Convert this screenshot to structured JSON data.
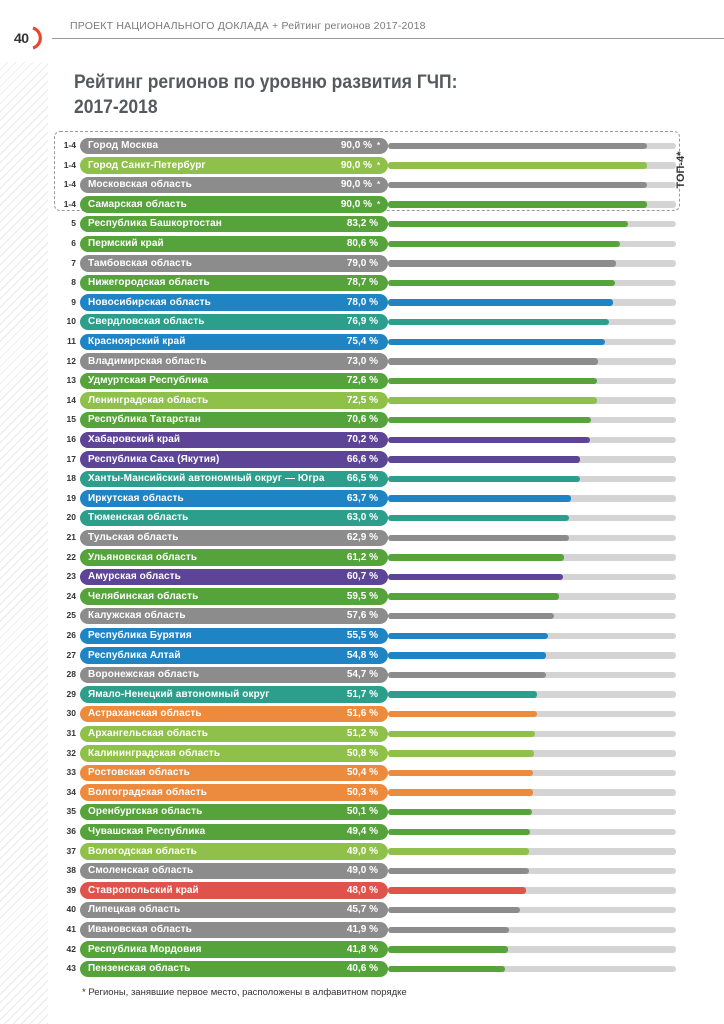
{
  "header": {
    "page_number": "40",
    "text": "ПРОЕКТ НАЦИОНАЛЬНОГО ДОКЛАДА + Рейтинг регионов 2017-2018",
    "accent_color": "#e8472b"
  },
  "top4": {
    "label": "ТОП-4*"
  },
  "footnote": "* Регионы, занявшие первое место, расположены в алфавитном порядке",
  "colors": {
    "gray": "#8c8c8c",
    "lightgreen": "#8fc04a",
    "green": "#55a33a",
    "teal": "#2c9e8c",
    "blue": "#1f84c4",
    "purple": "#5d4497",
    "orange": "#ec8a3d",
    "red": "#e0534a",
    "track": "#d4d4d4"
  },
  "chart_data": {
    "type": "bar",
    "orientation": "horizontal",
    "title": "Рейтинг регионов по уровню развития ГЧП:",
    "title_line2": "2017-2018",
    "value_unit": "%",
    "xlim": [
      0,
      100
    ],
    "rows": [
      {
        "rank": "1-4",
        "name": "Город Москва",
        "value": 90.0,
        "value_label": "90,0 %",
        "star": "*",
        "color": "gray"
      },
      {
        "rank": "1-4",
        "name": "Город Санкт-Петербург",
        "value": 90.0,
        "value_label": "90,0 %",
        "star": "*",
        "color": "lightgreen"
      },
      {
        "rank": "1-4",
        "name": "Московская область",
        "value": 90.0,
        "value_label": "90,0 %",
        "star": "*",
        "color": "gray"
      },
      {
        "rank": "1-4",
        "name": "Самарская область",
        "value": 90.0,
        "value_label": "90,0 %",
        "star": "*",
        "color": "green"
      },
      {
        "rank": "5",
        "name": "Республика Башкортостан",
        "value": 83.2,
        "value_label": "83,2 %",
        "color": "green"
      },
      {
        "rank": "6",
        "name": "Пермский край",
        "value": 80.6,
        "value_label": "80,6 %",
        "color": "green"
      },
      {
        "rank": "7",
        "name": "Тамбовская область",
        "value": 79.0,
        "value_label": "79,0 %",
        "color": "gray"
      },
      {
        "rank": "8",
        "name": "Нижегородская область",
        "value": 78.7,
        "value_label": "78,7 %",
        "color": "green"
      },
      {
        "rank": "9",
        "name": "Новосибирская область",
        "value": 78.0,
        "value_label": "78,0 %",
        "color": "blue"
      },
      {
        "rank": "10",
        "name": "Свердловская область",
        "value": 76.9,
        "value_label": "76,9 %",
        "color": "teal"
      },
      {
        "rank": "11",
        "name": "Красноярский край",
        "value": 75.4,
        "value_label": "75,4 %",
        "color": "blue"
      },
      {
        "rank": "12",
        "name": "Владимирская область",
        "value": 73.0,
        "value_label": "73,0 %",
        "color": "gray"
      },
      {
        "rank": "13",
        "name": "Удмуртская Республика",
        "value": 72.6,
        "value_label": "72,6 %",
        "color": "green"
      },
      {
        "rank": "14",
        "name": "Ленинградская область",
        "value": 72.5,
        "value_label": "72,5 %",
        "color": "lightgreen"
      },
      {
        "rank": "15",
        "name": "Республика Татарстан",
        "value": 70.6,
        "value_label": "70,6 %",
        "color": "green"
      },
      {
        "rank": "16",
        "name": "Хабаровский край",
        "value": 70.2,
        "value_label": "70,2 %",
        "color": "purple"
      },
      {
        "rank": "17",
        "name": "Республика Саха (Якутия)",
        "value": 66.6,
        "value_label": "66,6 %",
        "color": "purple"
      },
      {
        "rank": "18",
        "name": "Ханты-Мансийский автономный округ — Югра",
        "value": 66.5,
        "value_label": "66,5 %",
        "color": "teal"
      },
      {
        "rank": "19",
        "name": "Иркутская область",
        "value": 63.7,
        "value_label": "63,7 %",
        "color": "blue"
      },
      {
        "rank": "20",
        "name": "Тюменская область",
        "value": 63.0,
        "value_label": "63,0 %",
        "color": "teal"
      },
      {
        "rank": "21",
        "name": "Тульская область",
        "value": 62.9,
        "value_label": "62,9 %",
        "color": "gray"
      },
      {
        "rank": "22",
        "name": "Ульяновская область",
        "value": 61.2,
        "value_label": "61,2 %",
        "color": "green"
      },
      {
        "rank": "23",
        "name": "Амурская область",
        "value": 60.7,
        "value_label": "60,7 %",
        "color": "purple"
      },
      {
        "rank": "24",
        "name": "Челябинская область",
        "value": 59.5,
        "value_label": "59,5 %",
        "color": "green"
      },
      {
        "rank": "25",
        "name": "Калужская область",
        "value": 57.6,
        "value_label": "57,6 %",
        "color": "gray"
      },
      {
        "rank": "26",
        "name": "Республика Бурятия",
        "value": 55.5,
        "value_label": "55,5 %",
        "color": "blue"
      },
      {
        "rank": "27",
        "name": "Республика Алтай",
        "value": 54.8,
        "value_label": "54,8 %",
        "color": "blue"
      },
      {
        "rank": "28",
        "name": "Воронежская область",
        "value": 54.7,
        "value_label": "54,7 %",
        "color": "gray"
      },
      {
        "rank": "29",
        "name": "Ямало-Ненецкий автономный округ",
        "value": 51.7,
        "value_label": "51,7 %",
        "color": "teal"
      },
      {
        "rank": "30",
        "name": "Астраханская область",
        "value": 51.6,
        "value_label": "51,6 %",
        "color": "orange"
      },
      {
        "rank": "31",
        "name": "Архангельская область",
        "value": 51.2,
        "value_label": "51,2 %",
        "color": "lightgreen"
      },
      {
        "rank": "32",
        "name": "Калининградская область",
        "value": 50.8,
        "value_label": "50,8 %",
        "color": "lightgreen"
      },
      {
        "rank": "33",
        "name": "Ростовская область",
        "value": 50.4,
        "value_label": "50,4 %",
        "color": "orange"
      },
      {
        "rank": "34",
        "name": "Волгоградская область",
        "value": 50.3,
        "value_label": "50,3 %",
        "color": "orange"
      },
      {
        "rank": "35",
        "name": "Оренбургская область",
        "value": 50.1,
        "value_label": "50,1 %",
        "color": "green"
      },
      {
        "rank": "36",
        "name": "Чувашская Республика",
        "value": 49.4,
        "value_label": "49,4 %",
        "color": "green"
      },
      {
        "rank": "37",
        "name": "Вологодская область",
        "value": 49.0,
        "value_label": "49,0 %",
        "color": "lightgreen"
      },
      {
        "rank": "38",
        "name": "Смоленская область",
        "value": 49.0,
        "value_label": "49,0 %",
        "color": "gray"
      },
      {
        "rank": "39",
        "name": "Ставропольский край",
        "value": 48.0,
        "value_label": "48,0 %",
        "color": "red"
      },
      {
        "rank": "40",
        "name": "Липецкая область",
        "value": 45.7,
        "value_label": "45,7 %",
        "color": "gray"
      },
      {
        "rank": "41",
        "name": "Ивановская область",
        "value": 41.9,
        "value_label": "41,9 %",
        "color": "gray"
      },
      {
        "rank": "42",
        "name": "Республика Мордовия",
        "value": 41.8,
        "value_label": "41,8 %",
        "color": "green"
      },
      {
        "rank": "43",
        "name": "Пензенская область",
        "value": 40.6,
        "value_label": "40,6 %",
        "color": "green"
      }
    ]
  }
}
